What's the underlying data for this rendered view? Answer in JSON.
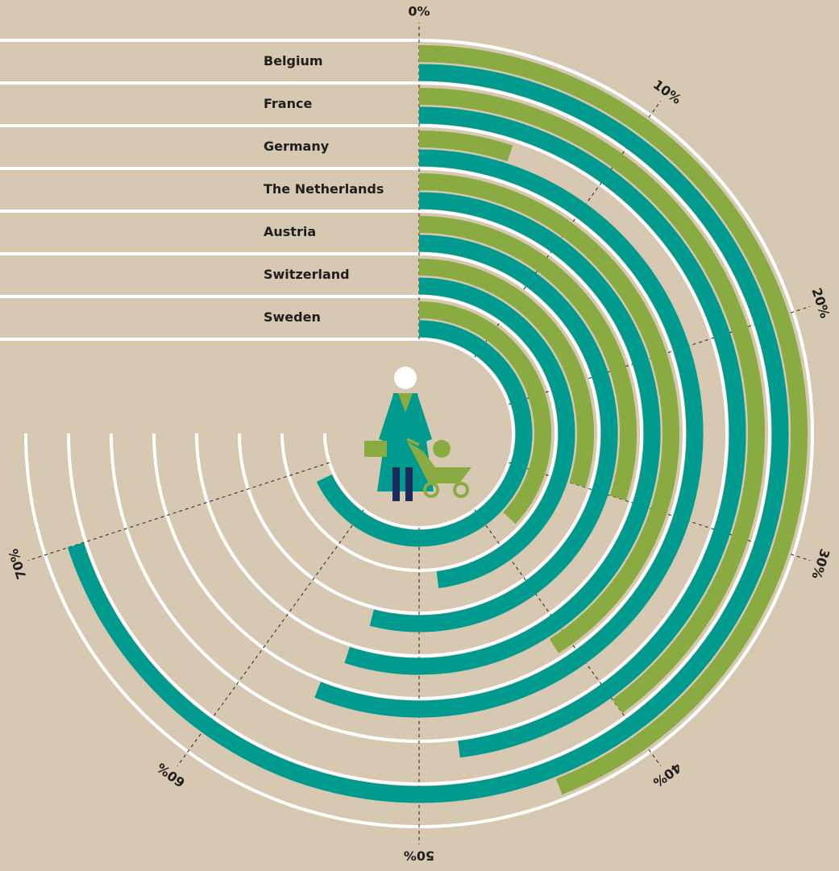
{
  "chart_data": {
    "type": "radial_bar",
    "categories": [
      "Belgium",
      "France",
      "Germany",
      "The Netherlands",
      "Austria",
      "Switzerland",
      "Sweden"
    ],
    "series": [
      {
        "color": "#8aab42",
        "values": [
          44,
          40,
          5,
          41,
          30,
          30,
          37
        ]
      },
      {
        "color": "#009a8e",
        "values": [
          70,
          48,
          56,
          55,
          54,
          48,
          68
        ]
      }
    ],
    "ylim": [
      0,
      100
    ],
    "yticks": [
      {
        "value": 0,
        "label": "0%"
      },
      {
        "value": 10,
        "label": "10%"
      },
      {
        "value": 20,
        "label": "20%"
      },
      {
        "value": 30,
        "label": "30%"
      },
      {
        "value": 40,
        "label": "40%"
      },
      {
        "value": 50,
        "label": "50%"
      },
      {
        "value": 60,
        "label": "60%"
      },
      {
        "value": 70,
        "label": "70%"
      }
    ],
    "grid": true
  }
}
